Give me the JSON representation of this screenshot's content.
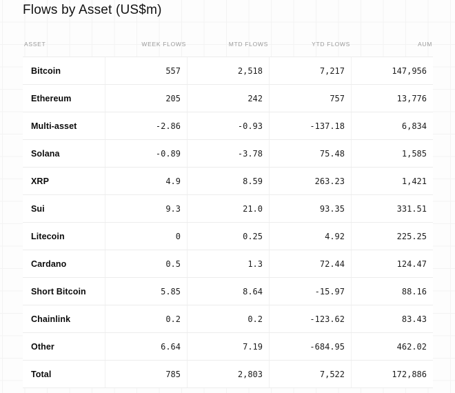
{
  "title": "Flows by Asset (US$m)",
  "table": {
    "columns": [
      {
        "label": "ASSET"
      },
      {
        "label": "WEEK FLOWS"
      },
      {
        "label": "MTD FLOWS"
      },
      {
        "label": "YTD FLOWS"
      },
      {
        "label": "AUM"
      }
    ],
    "rows": [
      {
        "asset": "Bitcoin",
        "week_flows": "557",
        "mtd_flows": "2,518",
        "ytd_flows": "7,217",
        "aum": "147,956"
      },
      {
        "asset": "Ethereum",
        "week_flows": "205",
        "mtd_flows": "242",
        "ytd_flows": "757",
        "aum": "13,776"
      },
      {
        "asset": "Multi-asset",
        "week_flows": "-2.86",
        "mtd_flows": "-0.93",
        "ytd_flows": "-137.18",
        "aum": "6,834"
      },
      {
        "asset": "Solana",
        "week_flows": "-0.89",
        "mtd_flows": "-3.78",
        "ytd_flows": "75.48",
        "aum": "1,585"
      },
      {
        "asset": "XRP",
        "week_flows": "4.9",
        "mtd_flows": "8.59",
        "ytd_flows": "263.23",
        "aum": "1,421"
      },
      {
        "asset": "Sui",
        "week_flows": "9.3",
        "mtd_flows": "21.0",
        "ytd_flows": "93.35",
        "aum": "331.51"
      },
      {
        "asset": "Litecoin",
        "week_flows": "0",
        "mtd_flows": "0.25",
        "ytd_flows": "4.92",
        "aum": "225.25"
      },
      {
        "asset": "Cardano",
        "week_flows": "0.5",
        "mtd_flows": "1.3",
        "ytd_flows": "72.44",
        "aum": "124.47"
      },
      {
        "asset": "Short Bitcoin",
        "week_flows": "5.85",
        "mtd_flows": "8.64",
        "ytd_flows": "-15.97",
        "aum": "88.16"
      },
      {
        "asset": "Chainlink",
        "week_flows": "0.2",
        "mtd_flows": "0.2",
        "ytd_flows": "-123.62",
        "aum": "83.43"
      },
      {
        "asset": "Other",
        "week_flows": "6.64",
        "mtd_flows": "7.19",
        "ytd_flows": "-684.95",
        "aum": "462.02"
      },
      {
        "asset": "Total",
        "week_flows": "785",
        "mtd_flows": "2,803",
        "ytd_flows": "7,522",
        "aum": "172,886"
      }
    ]
  },
  "chart_data": {
    "type": "table",
    "title": "Flows by Asset (US$m)",
    "columns": [
      "ASSET",
      "WEEK FLOWS",
      "MTD FLOWS",
      "YTD FLOWS",
      "AUM"
    ],
    "rows": [
      [
        "Bitcoin",
        557,
        2518,
        7217,
        147956
      ],
      [
        "Ethereum",
        205,
        242,
        757,
        13776
      ],
      [
        "Multi-asset",
        -2.86,
        -0.93,
        -137.18,
        6834
      ],
      [
        "Solana",
        -0.89,
        -3.78,
        75.48,
        1585
      ],
      [
        "XRP",
        4.9,
        8.59,
        263.23,
        1421
      ],
      [
        "Sui",
        9.3,
        21.0,
        93.35,
        331.51
      ],
      [
        "Litecoin",
        0,
        0.25,
        4.92,
        225.25
      ],
      [
        "Cardano",
        0.5,
        1.3,
        72.44,
        124.47
      ],
      [
        "Short Bitcoin",
        5.85,
        8.64,
        -15.97,
        88.16
      ],
      [
        "Chainlink",
        0.2,
        0.2,
        -123.62,
        83.43
      ],
      [
        "Other",
        6.64,
        7.19,
        -684.95,
        462.02
      ],
      [
        "Total",
        785,
        2803,
        7522,
        172886
      ]
    ]
  },
  "colors": {
    "page_background": "#fdfdfd",
    "grid_line": "#f3f3f3",
    "row_background": "#ffffff",
    "row_border": "#ececec",
    "column_divider": "#f1f1f1",
    "title_text": "#111111",
    "header_text": "#9b9b9b",
    "value_text": "#1c1c1c"
  }
}
